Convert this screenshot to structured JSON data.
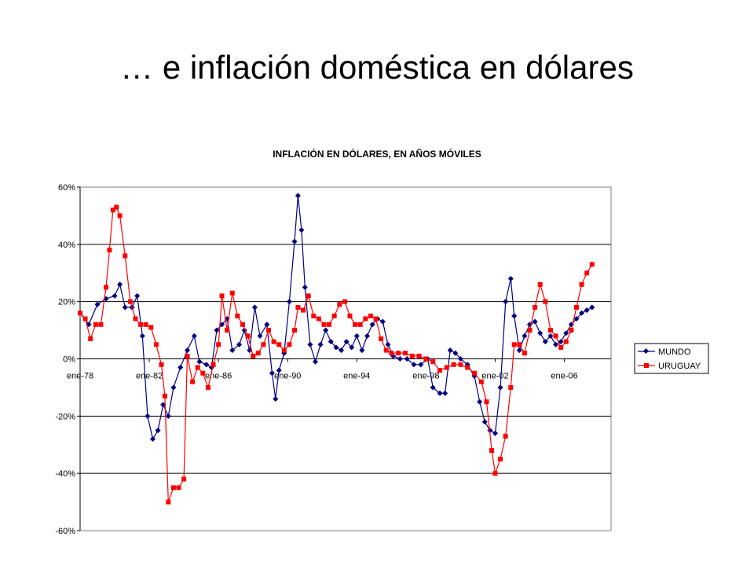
{
  "slide": {
    "title": "… e inflación doméstica en dólares"
  },
  "colors": {
    "mundo": "#000080",
    "uruguay": "#ff0000",
    "grid": "#000000",
    "plot_border": "#808080"
  },
  "chart_data": {
    "type": "line",
    "title": "INFLACIÓN EN DÓLARES, EN AÑOS MÓVILES",
    "xlabel": "",
    "ylabel": "",
    "x_unit": "year (monthly, decimal)",
    "xlim": [
      1978.0,
      2008.7
    ],
    "ylim": [
      -60,
      60
    ],
    "y_ticks": [
      60,
      40,
      20,
      0,
      -20,
      -40,
      -60
    ],
    "y_tick_labels": [
      "60%",
      "40%",
      "20%",
      "0%",
      "-20%",
      "-40%",
      "-60%"
    ],
    "x_ticks": [
      1978,
      1982,
      1986,
      1990,
      1994,
      1998,
      2002,
      2006
    ],
    "x_tick_labels": [
      "ene-78",
      "ene-82",
      "ene-86",
      "ene-90",
      "ene-94",
      "ene-98",
      "ene-02",
      "ene-06"
    ],
    "grid": "horizontal",
    "legend_position": "right",
    "series": [
      {
        "name": "MUNDO",
        "marker": "diamond",
        "points": [
          [
            1978.0,
            16
          ],
          [
            1978.5,
            12
          ],
          [
            1979.0,
            19
          ],
          [
            1979.5,
            21
          ],
          [
            1980.0,
            22
          ],
          [
            1980.3,
            26
          ],
          [
            1980.6,
            18
          ],
          [
            1981.0,
            18
          ],
          [
            1981.3,
            22
          ],
          [
            1981.6,
            8
          ],
          [
            1981.9,
            -20
          ],
          [
            1982.2,
            -28
          ],
          [
            1982.5,
            -25
          ],
          [
            1982.8,
            -16
          ],
          [
            1983.1,
            -20
          ],
          [
            1983.4,
            -10
          ],
          [
            1983.8,
            -3
          ],
          [
            1984.2,
            3
          ],
          [
            1984.6,
            8
          ],
          [
            1984.9,
            -1
          ],
          [
            1985.3,
            -2
          ],
          [
            1985.6,
            -3
          ],
          [
            1985.9,
            10
          ],
          [
            1986.2,
            12
          ],
          [
            1986.5,
            14
          ],
          [
            1986.8,
            3
          ],
          [
            1987.2,
            5
          ],
          [
            1987.5,
            10
          ],
          [
            1987.8,
            3
          ],
          [
            1988.1,
            18
          ],
          [
            1988.4,
            8
          ],
          [
            1988.8,
            12
          ],
          [
            1989.1,
            -5
          ],
          [
            1989.3,
            -14
          ],
          [
            1989.5,
            -4
          ],
          [
            1989.8,
            2
          ],
          [
            1990.1,
            20
          ],
          [
            1990.4,
            41
          ],
          [
            1990.6,
            57
          ],
          [
            1990.8,
            45
          ],
          [
            1991.0,
            25
          ],
          [
            1991.3,
            5
          ],
          [
            1991.6,
            -1
          ],
          [
            1991.9,
            5
          ],
          [
            1992.2,
            10
          ],
          [
            1992.5,
            6
          ],
          [
            1992.8,
            4
          ],
          [
            1993.1,
            3
          ],
          [
            1993.4,
            6
          ],
          [
            1993.7,
            4
          ],
          [
            1994.0,
            8
          ],
          [
            1994.3,
            3
          ],
          [
            1994.6,
            8
          ],
          [
            1994.9,
            12
          ],
          [
            1995.2,
            14
          ],
          [
            1995.5,
            13
          ],
          [
            1995.8,
            5
          ],
          [
            1996.1,
            1
          ],
          [
            1996.5,
            0
          ],
          [
            1996.9,
            0
          ],
          [
            1997.3,
            -2
          ],
          [
            1997.7,
            -2
          ],
          [
            1998.1,
            0
          ],
          [
            1998.4,
            -10
          ],
          [
            1998.8,
            -12
          ],
          [
            1999.1,
            -12
          ],
          [
            1999.4,
            3
          ],
          [
            1999.7,
            2
          ],
          [
            2000.0,
            0
          ],
          [
            2000.4,
            -2
          ],
          [
            2000.8,
            -6
          ],
          [
            2001.1,
            -15
          ],
          [
            2001.4,
            -22
          ],
          [
            2001.7,
            -25
          ],
          [
            2002.0,
            -26
          ],
          [
            2002.3,
            -10
          ],
          [
            2002.6,
            20
          ],
          [
            2002.9,
            28
          ],
          [
            2003.1,
            15
          ],
          [
            2003.4,
            3
          ],
          [
            2003.7,
            8
          ],
          [
            2004.0,
            12
          ],
          [
            2004.3,
            13
          ],
          [
            2004.6,
            9
          ],
          [
            2004.9,
            6
          ],
          [
            2005.2,
            8
          ],
          [
            2005.5,
            5
          ],
          [
            2005.8,
            6
          ],
          [
            2006.1,
            9
          ],
          [
            2006.4,
            12
          ],
          [
            2006.7,
            14
          ],
          [
            2007.0,
            16
          ],
          [
            2007.3,
            17
          ],
          [
            2007.6,
            18
          ]
        ]
      },
      {
        "name": "URUGUAY",
        "marker": "square",
        "points": [
          [
            1978.0,
            16
          ],
          [
            1978.3,
            14
          ],
          [
            1978.6,
            7
          ],
          [
            1978.9,
            12
          ],
          [
            1979.2,
            12
          ],
          [
            1979.5,
            25
          ],
          [
            1979.7,
            38
          ],
          [
            1979.9,
            52
          ],
          [
            1980.1,
            53
          ],
          [
            1980.3,
            50
          ],
          [
            1980.6,
            36
          ],
          [
            1980.9,
            20
          ],
          [
            1981.2,
            14
          ],
          [
            1981.5,
            12
          ],
          [
            1981.8,
            12
          ],
          [
            1982.1,
            11
          ],
          [
            1982.4,
            5
          ],
          [
            1982.7,
            -2
          ],
          [
            1982.9,
            -13
          ],
          [
            1983.1,
            -50
          ],
          [
            1983.4,
            -45
          ],
          [
            1983.7,
            -45
          ],
          [
            1984.0,
            -42
          ],
          [
            1984.2,
            1
          ],
          [
            1984.5,
            -8
          ],
          [
            1984.8,
            -3
          ],
          [
            1985.1,
            -5
          ],
          [
            1985.4,
            -10
          ],
          [
            1985.7,
            -2
          ],
          [
            1986.0,
            5
          ],
          [
            1986.2,
            22
          ],
          [
            1986.5,
            10
          ],
          [
            1986.8,
            23
          ],
          [
            1987.1,
            15
          ],
          [
            1987.4,
            12
          ],
          [
            1987.7,
            8
          ],
          [
            1988.0,
            1
          ],
          [
            1988.3,
            2
          ],
          [
            1988.6,
            5
          ],
          [
            1988.9,
            10
          ],
          [
            1989.2,
            6
          ],
          [
            1989.5,
            5
          ],
          [
            1989.8,
            3
          ],
          [
            1990.1,
            5
          ],
          [
            1990.4,
            10
          ],
          [
            1990.6,
            18
          ],
          [
            1990.9,
            17
          ],
          [
            1991.2,
            22
          ],
          [
            1991.5,
            15
          ],
          [
            1991.8,
            14
          ],
          [
            1992.1,
            12
          ],
          [
            1992.4,
            12
          ],
          [
            1992.7,
            15
          ],
          [
            1993.0,
            19
          ],
          [
            1993.3,
            20
          ],
          [
            1993.6,
            15
          ],
          [
            1993.9,
            12
          ],
          [
            1994.2,
            12
          ],
          [
            1994.5,
            14
          ],
          [
            1994.8,
            15
          ],
          [
            1995.1,
            14
          ],
          [
            1995.4,
            7
          ],
          [
            1995.7,
            3
          ],
          [
            1996.0,
            2
          ],
          [
            1996.4,
            2
          ],
          [
            1996.8,
            2
          ],
          [
            1997.2,
            1
          ],
          [
            1997.6,
            1
          ],
          [
            1998.0,
            0
          ],
          [
            1998.4,
            -1
          ],
          [
            1998.8,
            -4
          ],
          [
            1999.2,
            -3
          ],
          [
            1999.6,
            -2
          ],
          [
            2000.0,
            -2
          ],
          [
            2000.4,
            -3
          ],
          [
            2000.8,
            -5
          ],
          [
            2001.2,
            -8
          ],
          [
            2001.5,
            -15
          ],
          [
            2001.8,
            -32
          ],
          [
            2002.0,
            -40
          ],
          [
            2002.3,
            -35
          ],
          [
            2002.6,
            -27
          ],
          [
            2002.9,
            -10
          ],
          [
            2003.1,
            5
          ],
          [
            2003.4,
            5
          ],
          [
            2003.7,
            2
          ],
          [
            2004.0,
            10
          ],
          [
            2004.3,
            18
          ],
          [
            2004.6,
            26
          ],
          [
            2004.9,
            20
          ],
          [
            2005.2,
            10
          ],
          [
            2005.5,
            8
          ],
          [
            2005.8,
            4
          ],
          [
            2006.1,
            6
          ],
          [
            2006.4,
            10
          ],
          [
            2006.7,
            18
          ],
          [
            2007.0,
            26
          ],
          [
            2007.3,
            30
          ],
          [
            2007.6,
            33
          ]
        ]
      }
    ]
  }
}
